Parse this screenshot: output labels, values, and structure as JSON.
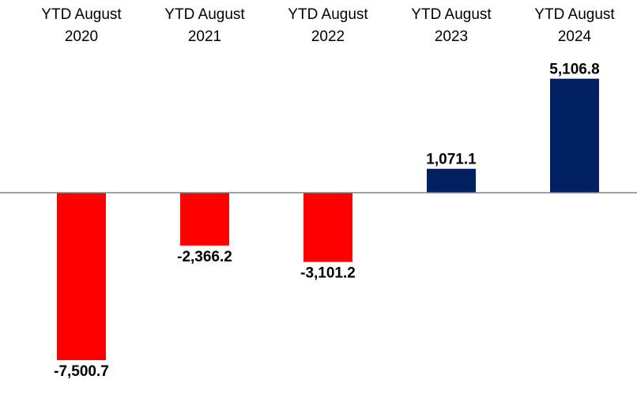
{
  "chart_data": {
    "type": "bar",
    "categories": [
      [
        "YTD August",
        "2020"
      ],
      [
        "YTD August",
        "2021"
      ],
      [
        "YTD August",
        "2022"
      ],
      [
        "YTD August",
        "2023"
      ],
      [
        "YTD August",
        "2024"
      ]
    ],
    "values": [
      -7500.7,
      -2366.2,
      -3101.2,
      1071.1,
      5106.8
    ],
    "labels": [
      "-7,500.7",
      "-2,366.2",
      "-3,101.2",
      "1,071.1",
      "5,106.8"
    ],
    "title": "",
    "xlabel": "",
    "ylabel": "",
    "colors": {
      "negative": "#ff0000",
      "positive": "#002060",
      "axis": "#808080"
    },
    "grid": false,
    "legend": "none"
  }
}
